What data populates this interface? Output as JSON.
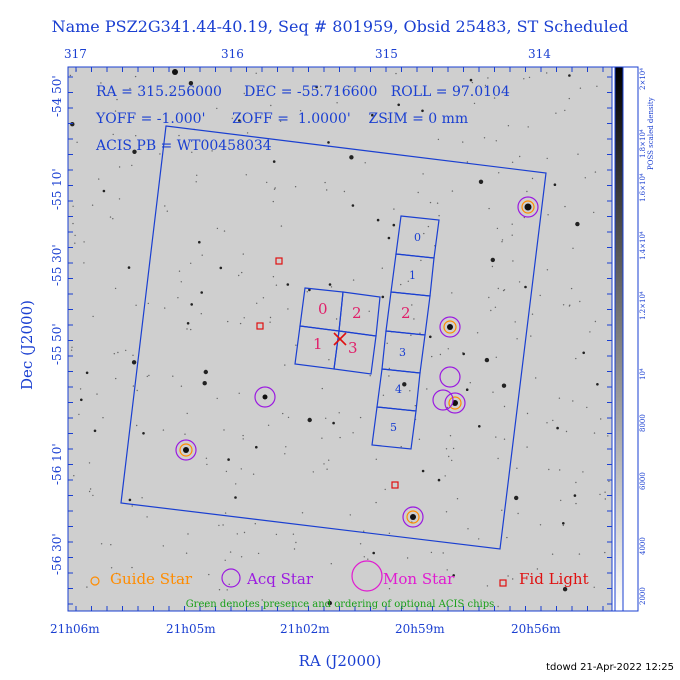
{
  "title": "Name PSZ2G341.44-40.19, Seq # 801959, Obsid 25483, ST Scheduled",
  "info": {
    "line1": "RA = 315.256000     DEC = -55.716600   ROLL = 97.0104",
    "line2": "YOFF = -1.000'      ZOFF =  1.0000'    ZSIM = 0 mm",
    "line3": "ACIS PB = WT00458034"
  },
  "axes": {
    "top_ticks": [
      "317",
      "316",
      "315",
      "314"
    ],
    "bottom_ticks": [
      "21h06m",
      "21h05m",
      "21h02m",
      "20h59m",
      "20h56m"
    ],
    "left_ticks": [
      "-54 50'",
      "-55 10'",
      "-55 30'",
      "-55 50'",
      "-56 10'",
      "-56 30'"
    ],
    "xlabel": "RA (J2000)",
    "ylabel": "Dec (J2000)"
  },
  "colorbar": {
    "label": "POSS scaled density",
    "ticks": [
      "2×10⁴",
      "1.8×10⁴",
      "1.6×10⁴",
      "1.4×10⁴",
      "1.2×10⁴",
      "10⁴",
      "8000",
      "6000",
      "4000",
      "2000"
    ]
  },
  "chips": {
    "imaging": [
      "0",
      "2",
      "1",
      "3"
    ],
    "spectroscopy": [
      "0",
      "1",
      "2",
      "3",
      "4",
      "5"
    ]
  },
  "legend": {
    "guide": "Guide Star",
    "acq": "Acq Star",
    "mon": "Mon Star",
    "fid": "Fid Light",
    "note": "Green denotes presence and ordering of optional ACIS chips"
  },
  "stamp": "tdowd 21-Apr-2022 12:25",
  "colors": {
    "axis": "#1a3fd1",
    "guide": "#ff8c00",
    "acq": "#9b1be0",
    "mon": "#e01bd0",
    "fid": "#e01010",
    "acis_label": "#e0206a",
    "note": "#1aa01a"
  }
}
